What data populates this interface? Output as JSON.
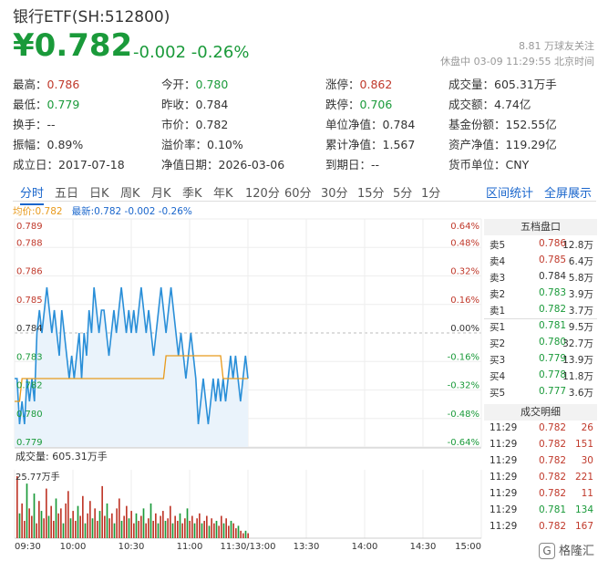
{
  "header": {
    "title": "银行ETF(SH:512800)",
    "price": "¥0.782",
    "change": "-0.002 -0.26%",
    "followers": "8.81 万球友关注",
    "status": "休盘中 03-09 11:29:55 北京时间"
  },
  "stats": [
    [
      {
        "label": "最高：",
        "value": "0.786",
        "color": "red"
      },
      {
        "label": "今开：",
        "value": "0.780",
        "color": "green"
      },
      {
        "label": "涨停：",
        "value": "0.862",
        "color": "red"
      },
      {
        "label": "成交量：",
        "value": "605.31万手",
        "color": ""
      }
    ],
    [
      {
        "label": "最低：",
        "value": "0.779",
        "color": "green"
      },
      {
        "label": "昨收：",
        "value": "0.784",
        "color": ""
      },
      {
        "label": "跌停：",
        "value": "0.706",
        "color": "green"
      },
      {
        "label": "成交额：",
        "value": "4.74亿",
        "color": ""
      }
    ],
    [
      {
        "label": "换手：",
        "value": "--",
        "color": ""
      },
      {
        "label": "市价：",
        "value": "0.782",
        "color": ""
      },
      {
        "label": "单位净值：",
        "value": "0.784",
        "color": ""
      },
      {
        "label": "基金份额：",
        "value": "152.55亿",
        "color": ""
      }
    ],
    [
      {
        "label": "振幅：",
        "value": "0.89%",
        "color": ""
      },
      {
        "label": "溢价率：",
        "value": "0.10%",
        "color": ""
      },
      {
        "label": "累计净值：",
        "value": "1.567",
        "color": ""
      },
      {
        "label": "资产净值：",
        "value": "119.29亿",
        "color": ""
      }
    ],
    [
      {
        "label": "成立日：",
        "value": "2017-07-18",
        "color": ""
      },
      {
        "label": "净值日期：",
        "value": "2026-03-06",
        "color": ""
      },
      {
        "label": "到期日：",
        "value": "--",
        "color": ""
      },
      {
        "label": "货币单位：",
        "value": "CNY",
        "color": ""
      }
    ]
  ],
  "tabs": [
    "分时",
    "五日",
    "日K",
    "周K",
    "月K",
    "季K",
    "年K",
    "120分",
    "60分",
    "30分",
    "15分",
    "5分",
    "1分"
  ],
  "tabs_right": [
    "区间统计",
    "全屏展示"
  ],
  "legend": {
    "avg": "均价:0.782",
    "latest": "最新:0.782 -0.002 -0.26%"
  },
  "chart_data": {
    "type": "line",
    "y_left_ticks": [
      "0.789",
      "0.788",
      "0.786",
      "0.785",
      "0.784",
      "0.783",
      "0.782",
      "0.780",
      "0.779"
    ],
    "y_right_ticks": [
      "0.64%",
      "0.48%",
      "0.32%",
      "0.16%",
      "0.00%",
      "-0.16%",
      "-0.32%",
      "-0.48%",
      "-0.64%"
    ],
    "x_ticks": [
      "09:30",
      "10:00",
      "10:30",
      "11:00",
      "11:30/13:00",
      "13:30",
      "14:00",
      "14:30",
      "15:00"
    ],
    "ylim": [
      0.779,
      0.789
    ],
    "series": [
      {
        "name": "最新",
        "color": "#2a8fd8",
        "values": [
          0.782,
          0.782,
          0.78,
          0.781,
          0.78,
          0.782,
          0.781,
          0.782,
          0.781,
          0.784,
          0.785,
          0.784,
          0.785,
          0.786,
          0.785,
          0.784,
          0.785,
          0.784,
          0.783,
          0.785,
          0.784,
          0.783,
          0.782,
          0.783,
          0.782,
          0.783,
          0.784,
          0.782,
          0.784,
          0.783,
          0.785,
          0.784,
          0.786,
          0.785,
          0.784,
          0.785,
          0.785,
          0.784,
          0.783,
          0.784,
          0.785,
          0.784,
          0.785,
          0.786,
          0.785,
          0.784,
          0.785,
          0.784,
          0.785,
          0.784,
          0.785,
          0.786,
          0.785,
          0.784,
          0.785,
          0.784,
          0.783,
          0.784,
          0.785,
          0.786,
          0.785,
          0.784,
          0.785,
          0.786,
          0.785,
          0.784,
          0.783,
          0.784,
          0.783,
          0.782,
          0.783,
          0.784,
          0.783,
          0.782,
          0.78,
          0.781,
          0.782,
          0.781,
          0.78,
          0.781,
          0.782,
          0.781,
          0.782,
          0.781,
          0.782,
          0.781,
          0.782,
          0.783,
          0.782,
          0.783,
          0.782,
          0.781,
          0.782,
          0.783,
          0.782
        ]
      },
      {
        "name": "均价",
        "color": "#e89a1c",
        "values": [
          0.781,
          0.781,
          0.781,
          0.782,
          0.782,
          0.782,
          0.782,
          0.782,
          0.782,
          0.782,
          0.782,
          0.782,
          0.782,
          0.782,
          0.782,
          0.782,
          0.782,
          0.782,
          0.782,
          0.782,
          0.782,
          0.782,
          0.782,
          0.782,
          0.782,
          0.782,
          0.782,
          0.782,
          0.782,
          0.782,
          0.782,
          0.782,
          0.782,
          0.782,
          0.782,
          0.782,
          0.782,
          0.782,
          0.782,
          0.782,
          0.782,
          0.782,
          0.782,
          0.782,
          0.782,
          0.782,
          0.782,
          0.782,
          0.782,
          0.782,
          0.782,
          0.782,
          0.782,
          0.782,
          0.782,
          0.782,
          0.782,
          0.782,
          0.782,
          0.782,
          0.782,
          0.783,
          0.783,
          0.783,
          0.783,
          0.783,
          0.783,
          0.783,
          0.783,
          0.783,
          0.783,
          0.783,
          0.783,
          0.783,
          0.783,
          0.783,
          0.783,
          0.783,
          0.783,
          0.783,
          0.783,
          0.783,
          0.783,
          0.783,
          0.782,
          0.782,
          0.782,
          0.782,
          0.782,
          0.782,
          0.782,
          0.782,
          0.782,
          0.782,
          0.782
        ]
      }
    ],
    "volume": {
      "label": "成交量: 605.31万手",
      "max_label": "25.77万手",
      "values": [
        25,
        10,
        14,
        7,
        22,
        12,
        9,
        18,
        6,
        15,
        11,
        8,
        20,
        9,
        13,
        7,
        16,
        10,
        12,
        6,
        14,
        19,
        8,
        11,
        7,
        13,
        9,
        17,
        6,
        10,
        15,
        8,
        12,
        7,
        11,
        21,
        9,
        14,
        8,
        10,
        6,
        12,
        16,
        7,
        9,
        13,
        8,
        11,
        6,
        10,
        7,
        9,
        12,
        6,
        8,
        14,
        7,
        10,
        6,
        9,
        11,
        7,
        8,
        13,
        6,
        9,
        7,
        10,
        6,
        8,
        12,
        7,
        9,
        6,
        8,
        10,
        6,
        7,
        9,
        5,
        8,
        6,
        7,
        5,
        9,
        6,
        8,
        5,
        7,
        6,
        4,
        5,
        3,
        2,
        3,
        2
      ]
    }
  },
  "order_book": {
    "title": "五档盘口",
    "asks": [
      {
        "label": "卖5",
        "price": "0.786",
        "vol": "12.8万",
        "color": "red"
      },
      {
        "label": "卖4",
        "price": "0.785",
        "vol": "6.4万",
        "color": "red"
      },
      {
        "label": "卖3",
        "price": "0.784",
        "vol": "5.8万",
        "color": ""
      },
      {
        "label": "卖2",
        "price": "0.783",
        "vol": "3.9万",
        "color": "green"
      },
      {
        "label": "卖1",
        "price": "0.782",
        "vol": "3.7万",
        "color": "green"
      }
    ],
    "bids": [
      {
        "label": "买1",
        "price": "0.781",
        "vol": "9.5万",
        "color": "green"
      },
      {
        "label": "买2",
        "price": "0.780",
        "vol": "32.7万",
        "color": "green"
      },
      {
        "label": "买3",
        "price": "0.779",
        "vol": "13.9万",
        "color": "green"
      },
      {
        "label": "买4",
        "price": "0.778",
        "vol": "11.8万",
        "color": "green"
      },
      {
        "label": "买5",
        "price": "0.777",
        "vol": "3.6万",
        "color": "green"
      }
    ]
  },
  "trades": {
    "title": "成交明细",
    "rows": [
      {
        "time": "11:29",
        "price": "0.782",
        "vol": "26",
        "color": "red"
      },
      {
        "time": "11:29",
        "price": "0.782",
        "vol": "151",
        "color": "red"
      },
      {
        "time": "11:29",
        "price": "0.782",
        "vol": "30",
        "color": "red"
      },
      {
        "time": "11:29",
        "price": "0.782",
        "vol": "221",
        "color": "red"
      },
      {
        "time": "11:29",
        "price": "0.782",
        "vol": "11",
        "color": "red"
      },
      {
        "time": "11:29",
        "price": "0.781",
        "vol": "134",
        "color": "green"
      },
      {
        "time": "11:29",
        "price": "0.782",
        "vol": "167",
        "color": "red"
      }
    ]
  },
  "watermark": "格隆汇"
}
